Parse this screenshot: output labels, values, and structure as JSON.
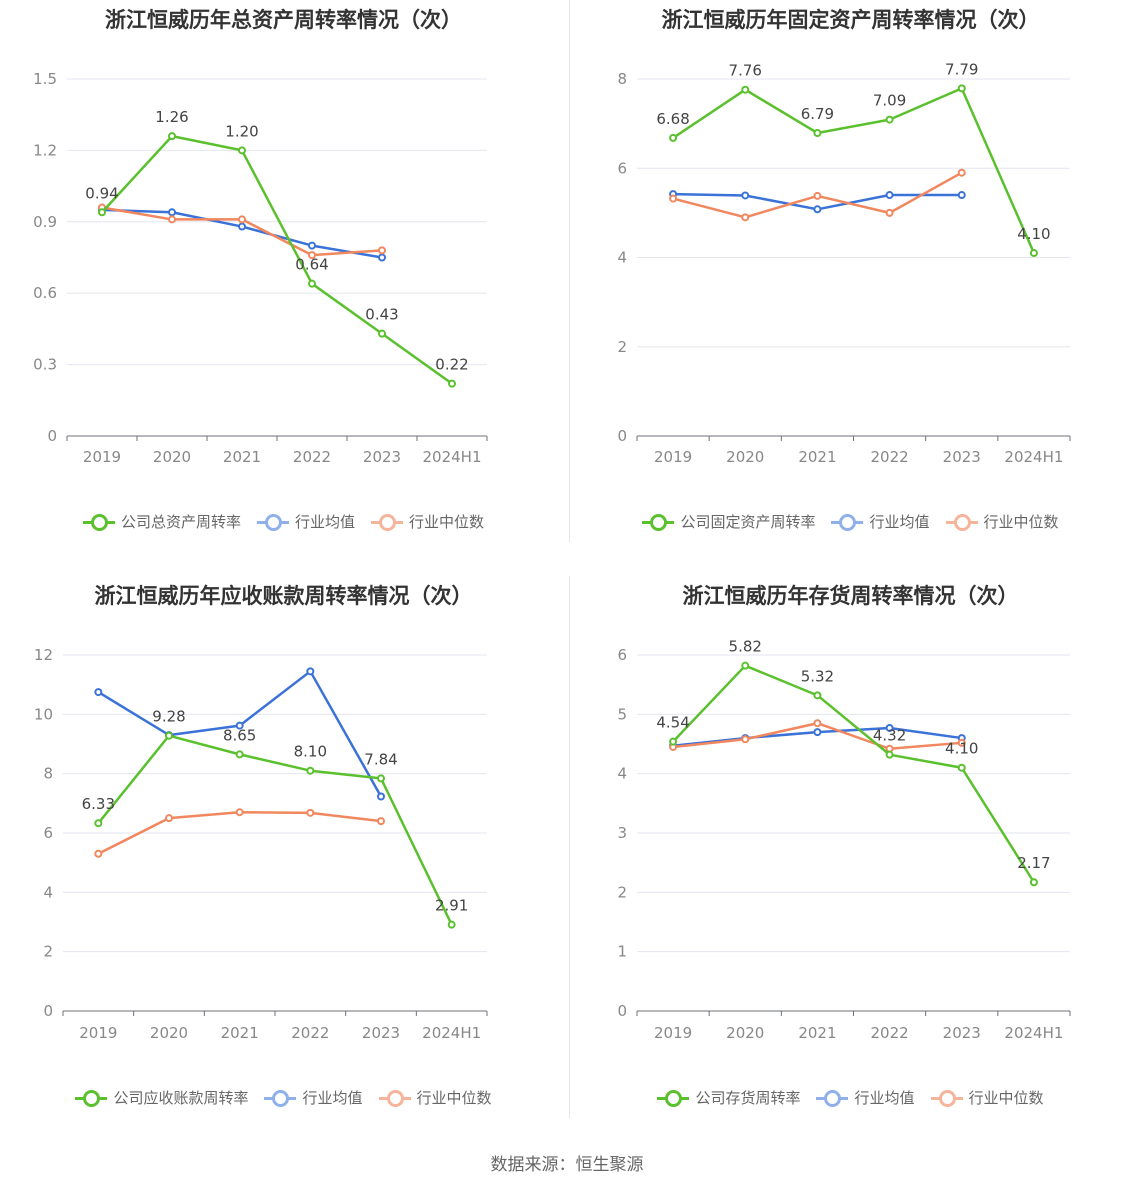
{
  "colors": {
    "company": "#5ac02d",
    "mean": "#3a72d8",
    "median": "#f0875e",
    "grid": "#e3e6ef",
    "axis": "#6e7079"
  },
  "source": "数据来源：恒生聚源",
  "legend_mean": "行业均值",
  "legend_median": "行业中位数",
  "chart_data": [
    {
      "type": "line",
      "title": "浙江恒威历年总资产周转率情况（次）",
      "categories": [
        "2019",
        "2020",
        "2021",
        "2022",
        "2023",
        "2024H1"
      ],
      "ylim": [
        0,
        1.5
      ],
      "yticks": [
        "0",
        "0.3",
        "0.6",
        "0.9",
        "1.2",
        "1.5"
      ],
      "series": [
        {
          "key": "company",
          "name": "公司总资产周转率",
          "values": [
            0.94,
            1.26,
            1.2,
            0.64,
            0.43,
            0.22
          ],
          "labels": [
            "0.94",
            "1.26",
            "1.20",
            "0.64",
            "0.43",
            "0.22"
          ]
        },
        {
          "key": "mean",
          "name": "行业均值",
          "values": [
            0.95,
            0.94,
            0.88,
            0.8,
            0.75,
            null
          ]
        },
        {
          "key": "median",
          "name": "行业中位数",
          "values": [
            0.96,
            0.91,
            0.91,
            0.76,
            0.78,
            null
          ]
        }
      ]
    },
    {
      "type": "line",
      "title": "浙江恒威历年固定资产周转率情况（次）",
      "categories": [
        "2019",
        "2020",
        "2021",
        "2022",
        "2023",
        "2024H1"
      ],
      "ylim": [
        0,
        8
      ],
      "yticks": [
        "0",
        "2",
        "4",
        "6",
        "8"
      ],
      "series": [
        {
          "key": "company",
          "name": "公司固定资产周转率",
          "values": [
            6.68,
            7.76,
            6.79,
            7.09,
            7.79,
            4.1
          ],
          "labels": [
            "6.68",
            "7.76",
            "6.79",
            "7.09",
            "7.79",
            "4.10"
          ]
        },
        {
          "key": "mean",
          "name": "行业均值",
          "values": [
            5.42,
            5.39,
            5.08,
            5.4,
            5.4,
            null
          ]
        },
        {
          "key": "median",
          "name": "行业中位数",
          "values": [
            5.32,
            4.9,
            5.38,
            5.0,
            5.9,
            null
          ]
        }
      ]
    },
    {
      "type": "line",
      "title": "浙江恒威历年应收账款周转率情况（次）",
      "categories": [
        "2019",
        "2020",
        "2021",
        "2022",
        "2023",
        "2024H1"
      ],
      "ylim": [
        0,
        12
      ],
      "yticks": [
        "0",
        "2",
        "4",
        "6",
        "8",
        "10",
        "12"
      ],
      "series": [
        {
          "key": "company",
          "name": "公司应收账款周转率",
          "values": [
            6.33,
            9.28,
            8.65,
            8.1,
            7.84,
            2.91
          ],
          "labels": [
            "6.33",
            "9.28",
            "8.65",
            "8.10",
            "7.84",
            "2.91"
          ]
        },
        {
          "key": "mean",
          "name": "行业均值",
          "values": [
            10.75,
            9.3,
            9.62,
            11.45,
            7.23,
            null
          ]
        },
        {
          "key": "median",
          "name": "行业中位数",
          "values": [
            5.3,
            6.5,
            6.7,
            6.68,
            6.4,
            null
          ]
        }
      ]
    },
    {
      "type": "line",
      "title": "浙江恒威历年存货周转率情况（次）",
      "categories": [
        "2019",
        "2020",
        "2021",
        "2022",
        "2023",
        "2024H1"
      ],
      "ylim": [
        0,
        6
      ],
      "yticks": [
        "0",
        "1",
        "2",
        "3",
        "4",
        "5",
        "6"
      ],
      "series": [
        {
          "key": "company",
          "name": "公司存货周转率",
          "values": [
            4.54,
            5.82,
            5.32,
            4.32,
            4.1,
            2.17
          ],
          "labels": [
            "4.54",
            "5.82",
            "5.32",
            "4.32",
            "4.10",
            "2.17"
          ]
        },
        {
          "key": "mean",
          "name": "行业均值",
          "values": [
            4.47,
            4.6,
            4.7,
            4.77,
            4.6,
            null
          ]
        },
        {
          "key": "median",
          "name": "行业中位数",
          "values": [
            4.45,
            4.58,
            4.85,
            4.42,
            4.52,
            null
          ]
        }
      ]
    }
  ]
}
